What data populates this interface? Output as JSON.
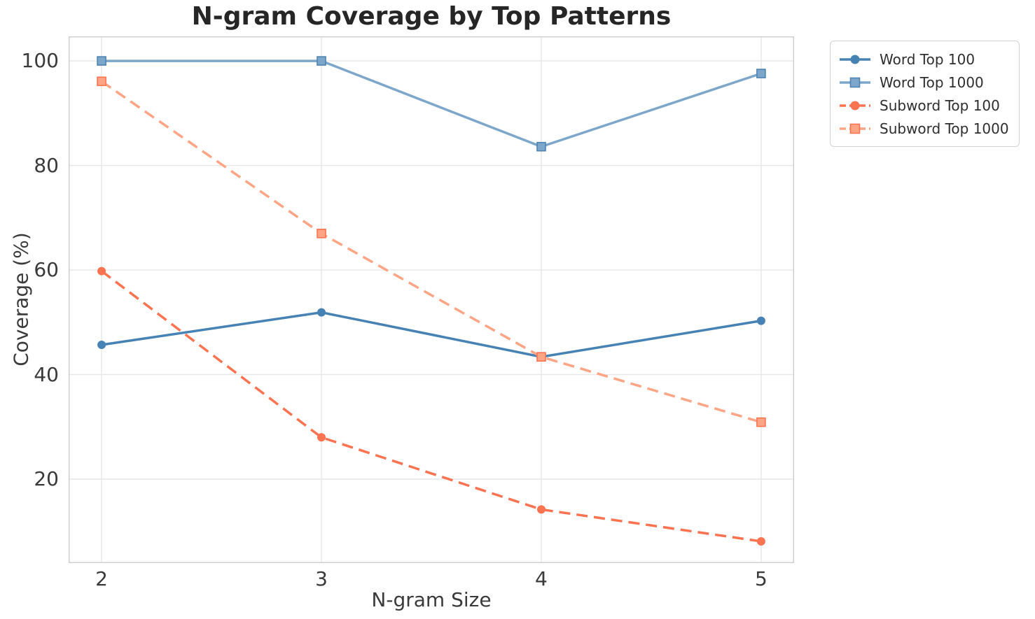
{
  "figure": {
    "background": "#ffffff"
  },
  "chart_data": {
    "type": "line",
    "title": "N-gram Coverage by Top Patterns",
    "xlabel": "N-gram Size",
    "ylabel": "Coverage (%)",
    "x": [
      2,
      3,
      4,
      5
    ],
    "x_ticks": [
      2,
      3,
      4,
      5
    ],
    "y_ticks": [
      20,
      40,
      60,
      80,
      100
    ],
    "xlim": [
      1.85,
      5.15
    ],
    "ylim": [
      3.95,
      104.7
    ],
    "grid": true,
    "grid_color": "#e7e7e7",
    "spine_color": "#cdcdcd",
    "legend_position": "upper right outside",
    "series": [
      {
        "name": "Word Top 100",
        "values": [
          45.7,
          51.9,
          43.4,
          50.3
        ],
        "color": "#4682b4",
        "line_style": "solid",
        "dash": null,
        "marker": "circle",
        "marker_edge": "#4682b4"
      },
      {
        "name": "Word Top 1000",
        "values": [
          100.0,
          100.0,
          83.6,
          97.6
        ],
        "color": "#7da7ca",
        "line_style": "solid",
        "dash": null,
        "marker": "square",
        "marker_edge": "#4e84b2"
      },
      {
        "name": "Subword Top 100",
        "values": [
          59.8,
          28.0,
          14.2,
          8.1
        ],
        "color": "#fb7350",
        "line_style": "dashed",
        "dash": "16 9",
        "marker": "circle",
        "marker_edge": "#fb7350"
      },
      {
        "name": "Subword Top 1000",
        "values": [
          96.1,
          67.0,
          43.4,
          30.9
        ],
        "color": "#ffa585",
        "line_style": "dashed",
        "dash": "16 9",
        "marker": "square",
        "marker_edge": "#fb7350"
      }
    ]
  }
}
